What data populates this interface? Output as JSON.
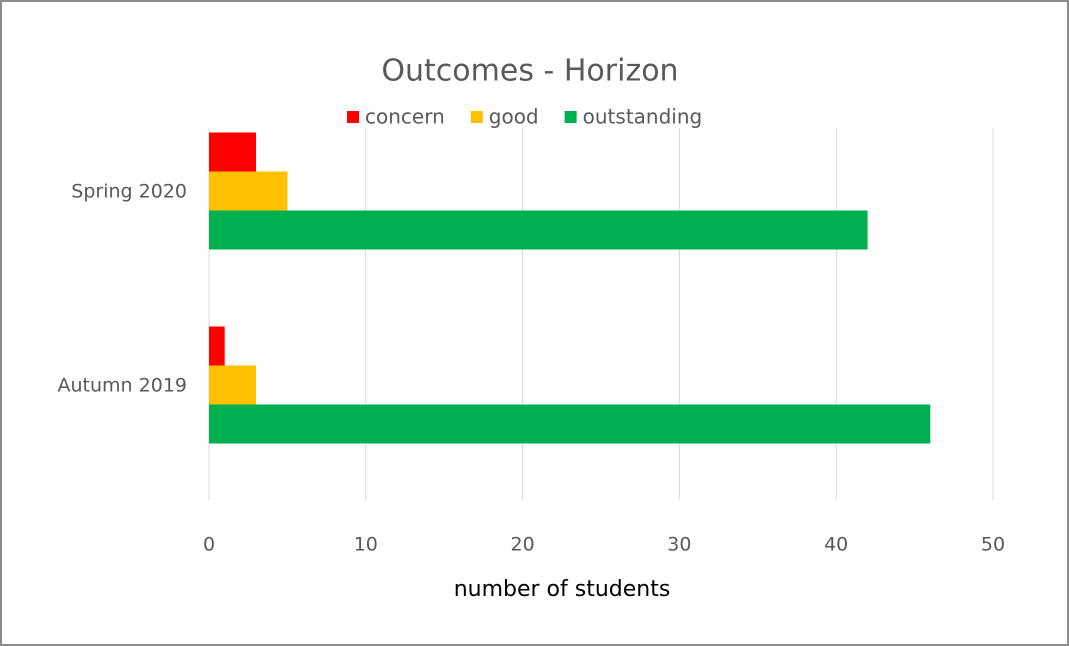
{
  "chart_data": {
    "type": "hbar",
    "title": "Outcomes - Horizon",
    "categories": [
      "Spring 2020",
      "Autumn 2019"
    ],
    "series": [
      {
        "name": "concern",
        "color": "#ff0000",
        "values": [
          3,
          1
        ]
      },
      {
        "name": "good",
        "color": "#ffc000",
        "values": [
          5,
          3
        ]
      },
      {
        "name": "outstanding",
        "color": "#00b050",
        "values": [
          42,
          46
        ]
      }
    ],
    "xlabel": "number of students",
    "xlim": [
      0,
      50
    ],
    "xticks": [
      0,
      10,
      20,
      30,
      40,
      50
    ],
    "grid": true,
    "legend": "top"
  }
}
